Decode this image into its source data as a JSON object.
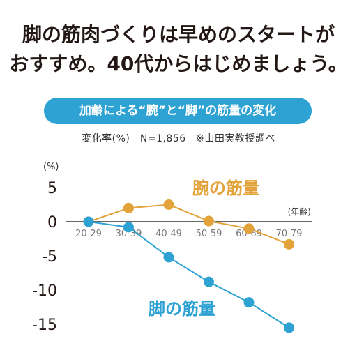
{
  "headline": {
    "line1": "脚の筋肉づくりは早めのスタートが",
    "line2": "おすすめ。40代からはじめましょう。"
  },
  "chart_title": "加齢による“腕”と“脚”の筋量の変化",
  "subnote": "変化率(%)　N=1,856　※山田実教授調べ",
  "colors": {
    "arm": "#e3a33b",
    "leg": "#2ea2d3",
    "axis": "#333333",
    "pill": "#2ea2d3"
  },
  "chart_data": {
    "type": "line",
    "y_unit": "(%)",
    "x_unit": "(年齢)",
    "categories": [
      "20-29",
      "30-39",
      "40-49",
      "50-59",
      "60-69",
      "70-79"
    ],
    "y_ticks": [
      "5",
      "0",
      "-5",
      "-10",
      "-15"
    ],
    "ylim": [
      -15,
      5
    ],
    "series": [
      {
        "name": "腕の筋量",
        "key": "arm",
        "values": [
          0,
          2,
          2.5,
          0.1,
          -1,
          -3.3
        ]
      },
      {
        "name": "脚の筋量",
        "key": "leg",
        "values": [
          0,
          -0.8,
          -5.2,
          -8.8,
          -11.8,
          -15.5
        ]
      }
    ]
  }
}
